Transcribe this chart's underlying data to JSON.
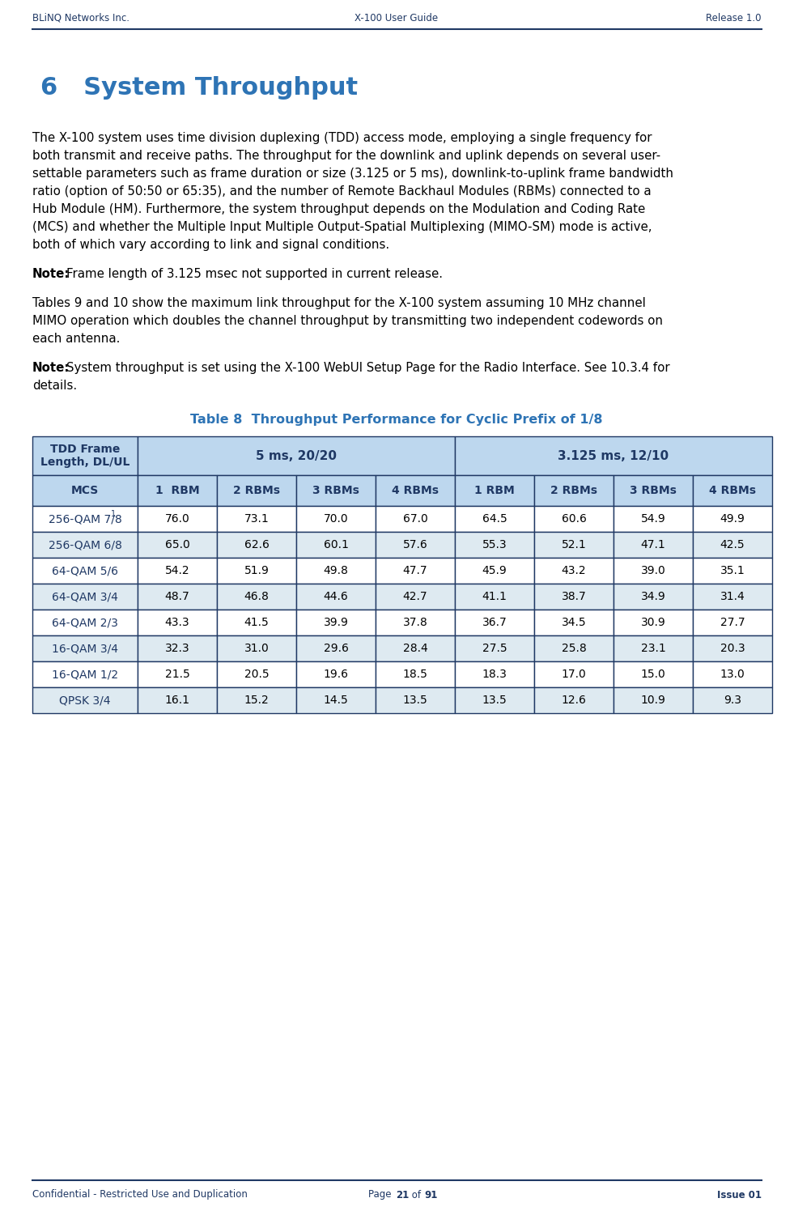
{
  "header_left": "BLiNQ Networks Inc.",
  "header_center": "X-100 User Guide",
  "header_right": "Release 1.0",
  "footer_left": "Confidential - Restricted Use and Duplication",
  "footer_right": "Issue 01",
  "header_color": "#1F3864",
  "title": "6   System Throughput",
  "title_color": "#2E74B5",
  "table_title": "Table 8  Throughput Performance for Cyclic Prefix of 1/8",
  "table_title_color": "#2E74B5",
  "tdd_header_bg": "#BDD7EE",
  "tdd_header_fg": "#1F3864",
  "mcs_header_bg": "#BDD7EE",
  "mcs_header_fg": "#1F3864",
  "alt_row_bg": "#DEEAF1",
  "white_row_bg": "#FFFFFF",
  "table_border_color": "#1F3864",
  "sub_headers": [
    "MCS",
    "1  RBM",
    "2 RBMs",
    "3 RBMs",
    "4 RBMs",
    "1 RBM",
    "2 RBMs",
    "3 RBMs",
    "4 RBMs"
  ],
  "rows": [
    [
      "256-QAM 7/8¹",
      "76.0",
      "73.1",
      "70.0",
      "67.0",
      "64.5",
      "60.6",
      "54.9",
      "49.9"
    ],
    [
      "256-QAM 6/8",
      "65.0",
      "62.6",
      "60.1",
      "57.6",
      "55.3",
      "52.1",
      "47.1",
      "42.5"
    ],
    [
      "64-QAM 5/6",
      "54.2",
      "51.9",
      "49.8",
      "47.7",
      "45.9",
      "43.2",
      "39.0",
      "35.1"
    ],
    [
      "64-QAM 3/4",
      "48.7",
      "46.8",
      "44.6",
      "42.7",
      "41.1",
      "38.7",
      "34.9",
      "31.4"
    ],
    [
      "64-QAM 2/3",
      "43.3",
      "41.5",
      "39.9",
      "37.8",
      "36.7",
      "34.5",
      "30.9",
      "27.7"
    ],
    [
      "16-QAM 3/4",
      "32.3",
      "31.0",
      "29.6",
      "28.4",
      "27.5",
      "25.8",
      "23.1",
      "20.3"
    ],
    [
      "16-QAM 1/2",
      "21.5",
      "20.5",
      "19.6",
      "18.5",
      "18.3",
      "17.0",
      "15.0",
      "13.0"
    ],
    [
      "QPSK 3/4",
      "16.1",
      "15.2",
      "14.5",
      "13.5",
      "13.5",
      "12.6",
      "10.9",
      "9.3"
    ]
  ],
  "lines1": [
    "The X-100 system uses time division duplexing (TDD) access mode, employing a single frequency for",
    "both transmit and receive paths. The throughput for the downlink and uplink depends on several user-",
    "settable parameters such as frame duration or size (3.125 or 5 ms), downlink-to-uplink frame bandwidth",
    "ratio (option of 50:50 or 65:35), and the number of Remote Backhaul Modules (RBMs) connected to a",
    "Hub Module (HM). Furthermore, the system throughput depends on the Modulation and Coding Rate",
    "(MCS) and whether the Multiple Input Multiple Output-Spatial Multiplexing (MIMO-SM) mode is active,",
    "both of which vary according to link and signal conditions."
  ],
  "note1_text": "Frame length of 3.125 msec not supported in current release.",
  "lines2": [
    "Tables 9 and 10 show the maximum link throughput for the X-100 system assuming 10 MHz channel",
    "MIMO operation which doubles the channel throughput by transmitting two independent codewords on",
    "each antenna."
  ],
  "note2_line1": "System throughput is set using the X-100 WebUI Setup Page for the Radio Interface. See 10.3.4 for",
  "note2_line2": "details."
}
